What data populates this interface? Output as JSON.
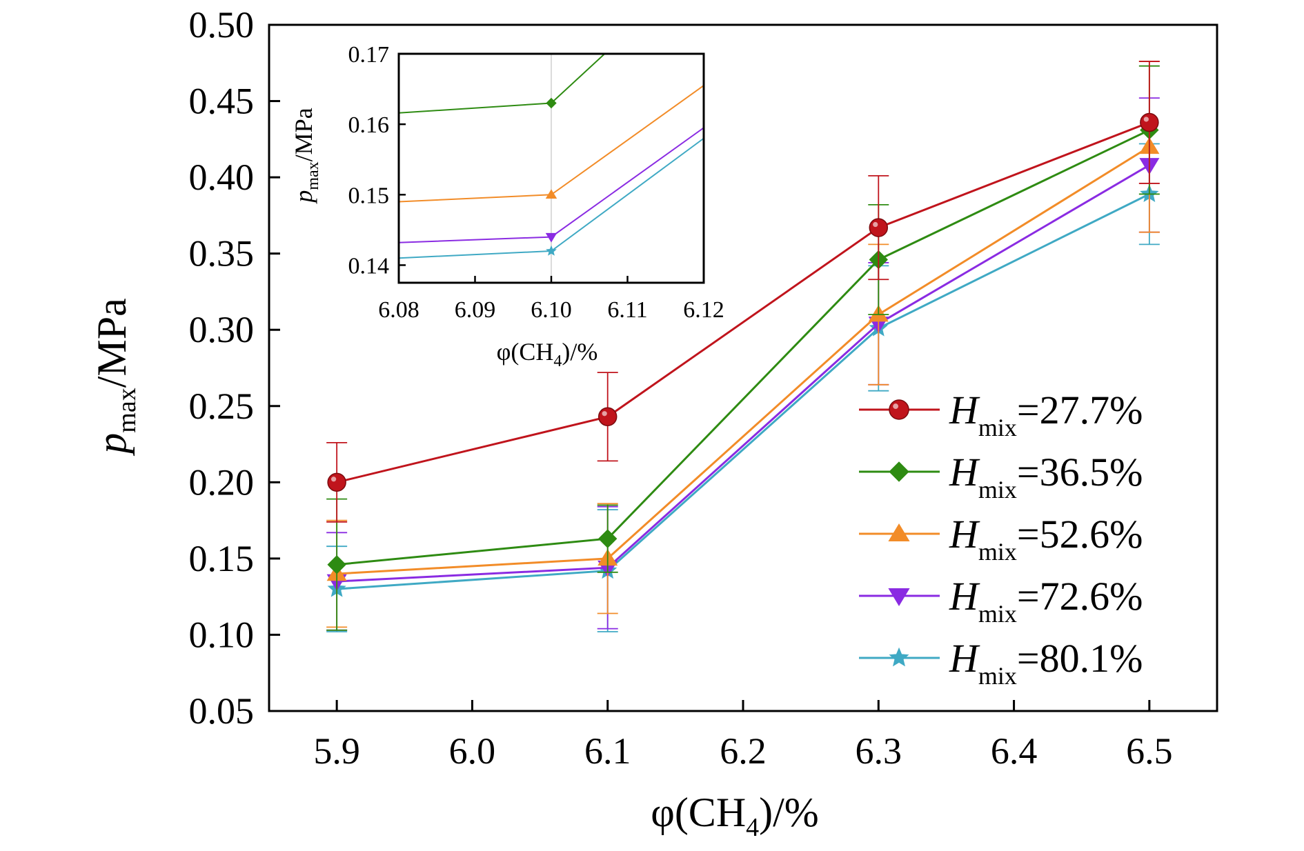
{
  "colors": {
    "Hmix=27.7%": "#c0141c",
    "Hmix=36.5%": "#2e8b12",
    "Hmix=52.6%": "#f28c28",
    "Hmix=72.6%": "#8a2be2",
    "Hmix=80.1%": "#3fa9c4"
  },
  "chart_data": [
    {
      "type": "line",
      "title": "",
      "xlabel": {
        "pre": "φ(CH",
        "sub": "4",
        "post": ")/%"
      },
      "ylabel": {
        "italic": "p",
        "sub": "max",
        "post": "/MPa"
      },
      "x": [
        5.9,
        6.1,
        6.3,
        6.5
      ],
      "xlim": [
        5.85,
        6.55
      ],
      "ylim": [
        0.05,
        0.5
      ],
      "xticks": [
        "5.9",
        "6.0",
        "6.1",
        "6.2",
        "6.3",
        "6.4",
        "6.5"
      ],
      "xtick_values": [
        5.9,
        6.0,
        6.1,
        6.2,
        6.3,
        6.4,
        6.5
      ],
      "yticks": [
        "0.05",
        "0.10",
        "0.15",
        "0.20",
        "0.25",
        "0.30",
        "0.35",
        "0.40",
        "0.45",
        "0.50"
      ],
      "ytick_values": [
        0.05,
        0.1,
        0.15,
        0.2,
        0.25,
        0.3,
        0.35,
        0.4,
        0.45,
        0.5
      ],
      "grid": false,
      "legend_position": "bottom-right",
      "series": [
        {
          "name": "Hmix=27.7%",
          "legend": {
            "italic": "H",
            "sub": "mix",
            "post": "=27.7%"
          },
          "marker": "circle",
          "values": [
            0.2,
            0.243,
            0.367,
            0.436
          ],
          "error": [
            0.026,
            0.029,
            0.034,
            0.04
          ]
        },
        {
          "name": "Hmix=36.5%",
          "legend": {
            "italic": "H",
            "sub": "mix",
            "post": "=36.5%"
          },
          "marker": "diamond",
          "values": [
            0.146,
            0.163,
            0.346,
            0.431
          ],
          "error": [
            0.043,
            0.022,
            0.036,
            0.042
          ]
        },
        {
          "name": "Hmix=52.6%",
          "legend": {
            "italic": "H",
            "sub": "mix",
            "post": "=52.6%"
          },
          "marker": "triangle-up",
          "values": [
            0.14,
            0.15,
            0.31,
            0.42
          ],
          "error": [
            0.035,
            0.036,
            0.046,
            0.056
          ]
        },
        {
          "name": "Hmix=72.6%",
          "legend": {
            "italic": "H",
            "sub": "mix",
            "post": "=72.6%"
          },
          "marker": "triangle-down",
          "values": [
            0.135,
            0.144,
            0.304,
            0.408
          ],
          "error": [
            0.032,
            0.04,
            0.04,
            0.044
          ]
        },
        {
          "name": "Hmix=80.1%",
          "legend": {
            "italic": "H",
            "sub": "mix",
            "post": "=80.1%"
          },
          "marker": "star",
          "values": [
            0.13,
            0.142,
            0.301,
            0.389
          ],
          "error": [
            0.028,
            0.04,
            0.041,
            0.033
          ]
        }
      ]
    },
    {
      "type": "line",
      "title": "",
      "xlabel": {
        "pre": "φ(CH",
        "sub": "4",
        "post": ")/%"
      },
      "ylabel": {
        "italic": "p",
        "sub": "max",
        "post": "/MPa"
      },
      "xlim": [
        6.08,
        6.12
      ],
      "ylim": [
        0.1375,
        0.17
      ],
      "xticks": [
        "6.08",
        "6.09",
        "6.10",
        "6.11",
        "6.12"
      ],
      "xtick_values": [
        6.08,
        6.09,
        6.1,
        6.11,
        6.12
      ],
      "yticks": [
        "0.14",
        "0.15",
        "0.16",
        "0.17"
      ],
      "ytick_values": [
        0.14,
        0.15,
        0.16,
        0.17
      ],
      "marker_x": 6.1,
      "reference_line_x": 6.1,
      "series": [
        {
          "name": "Hmix=36.5%",
          "marker": "diamond",
          "x": [
            6.08,
            6.1,
            6.107
          ],
          "values": [
            0.1616,
            0.163,
            0.17
          ]
        },
        {
          "name": "Hmix=52.6%",
          "marker": "triangle-up",
          "x": [
            6.08,
            6.1,
            6.12
          ],
          "values": [
            0.149,
            0.15,
            0.1655
          ]
        },
        {
          "name": "Hmix=72.6%",
          "marker": "triangle-down",
          "x": [
            6.08,
            6.1,
            6.12
          ],
          "values": [
            0.1432,
            0.144,
            0.1595
          ]
        },
        {
          "name": "Hmix=80.1%",
          "marker": "star",
          "x": [
            6.08,
            6.1,
            6.12
          ],
          "values": [
            0.141,
            0.142,
            0.158
          ]
        }
      ]
    }
  ]
}
